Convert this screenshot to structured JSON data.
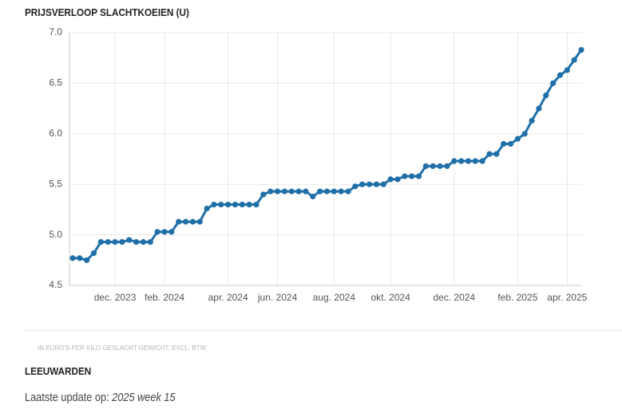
{
  "chart_data": {
    "type": "line",
    "title": "PRIJSVERLOOP SLACHTKOEIEN (U)",
    "categories": [
      null,
      null,
      null,
      null,
      null,
      null,
      "dec. 2023",
      null,
      null,
      null,
      null,
      null,
      null,
      "feb. 2024",
      null,
      null,
      null,
      null,
      null,
      null,
      null,
      null,
      "apr. 2024",
      null,
      null,
      null,
      null,
      null,
      null,
      "jun. 2024",
      null,
      null,
      null,
      null,
      null,
      null,
      null,
      "aug. 2024",
      null,
      null,
      null,
      null,
      null,
      null,
      null,
      "okt. 2024",
      null,
      null,
      null,
      null,
      null,
      null,
      null,
      null,
      "dec. 2024",
      null,
      null,
      null,
      null,
      null,
      null,
      null,
      null,
      "feb. 2025",
      null,
      null,
      null,
      null,
      null,
      null,
      "apr. 2025",
      null,
      null
    ],
    "series": [
      {
        "name": "LEEUWARDEN",
        "color": "#1f6fa8",
        "values": [
          4.77,
          4.77,
          4.75,
          4.82,
          4.93,
          4.93,
          4.93,
          4.93,
          4.95,
          4.93,
          4.93,
          4.93,
          5.03,
          5.03,
          5.03,
          5.13,
          5.13,
          5.13,
          5.13,
          5.26,
          5.3,
          5.3,
          5.3,
          5.3,
          5.3,
          5.3,
          5.3,
          5.4,
          5.43,
          5.43,
          5.43,
          5.43,
          5.43,
          5.43,
          5.38,
          5.43,
          5.43,
          5.43,
          5.43,
          5.43,
          5.48,
          5.5,
          5.5,
          5.5,
          5.5,
          5.55,
          5.55,
          5.58,
          5.58,
          5.58,
          5.68,
          5.68,
          5.68,
          5.68,
          5.73,
          5.73,
          5.73,
          5.73,
          5.73,
          5.8,
          5.8,
          5.9,
          5.9,
          5.95,
          6.0,
          6.13,
          6.25,
          6.38,
          6.5,
          6.58,
          6.63,
          6.73,
          6.83
        ]
      }
    ],
    "ylim": [
      4.5,
      7.0
    ],
    "yticks": [
      {
        "value": 4.5,
        "label": "4.5"
      },
      {
        "value": 5.0,
        "label": "5.0"
      },
      {
        "value": 5.5,
        "label": "5.5"
      },
      {
        "value": 6.0,
        "label": "6.0"
      },
      {
        "value": 6.5,
        "label": "6.5"
      },
      {
        "value": 7.0,
        "label": "7.0"
      }
    ],
    "grid": true,
    "footnote": "IN EURO'S PER KILO GESLACHT GEWICHT, EXCL. BTW",
    "update_label": "Laatste update op:",
    "update_value": "2025 week 15"
  }
}
